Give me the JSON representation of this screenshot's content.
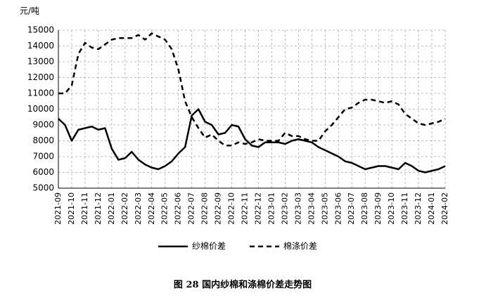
{
  "chart_data": {
    "type": "line",
    "y_unit_label": "元/吨",
    "caption": "图 28   国内纱棉和涤棉价差走势图",
    "categories": [
      "2021-09",
      null,
      "2021-10",
      null,
      "2021-11",
      null,
      "2021-12",
      null,
      "2022-01",
      null,
      "2022-02",
      null,
      "2022-03",
      null,
      "2022-04",
      null,
      "2022-05",
      null,
      "2022-06",
      null,
      "2022-07",
      null,
      "2022-08",
      null,
      "2022-09",
      null,
      "2022-10",
      null,
      "2022-11",
      null,
      "2022-12",
      null,
      "2023-01",
      null,
      "2023-02",
      null,
      "2023-03",
      null,
      "2023-04",
      null,
      "2023-05",
      null,
      "2023-06",
      null,
      "2023-07",
      null,
      "2023-08",
      null,
      "2023-09",
      null,
      "2023-10",
      null,
      "2023-11",
      null,
      "2023-12",
      null,
      "2024-01",
      null,
      "2024-02"
    ],
    "series": [
      {
        "name": "纱棉价差",
        "color": "#000000",
        "dash": false,
        "values": [
          9400,
          9000,
          8000,
          8700,
          8800,
          8900,
          8700,
          8800,
          7500,
          6800,
          6900,
          7300,
          6800,
          6500,
          6300,
          6200,
          6400,
          6700,
          7200,
          7600,
          9600,
          10000,
          9200,
          9000,
          8400,
          8500,
          9000,
          8900,
          8100,
          7700,
          7600,
          7900,
          7900,
          7900,
          7800,
          8000,
          8100,
          8000,
          7900,
          7600,
          7400,
          7200,
          7000,
          6700,
          6600,
          6400,
          6200,
          6300,
          6400,
          6400,
          6300,
          6200,
          6600,
          6400,
          6100,
          6000,
          6100,
          6200,
          6400
        ]
      },
      {
        "name": "棉涤价差",
        "color": "#000000",
        "dash": true,
        "values": [
          11000,
          11000,
          11500,
          13500,
          14200,
          13900,
          13800,
          14100,
          14400,
          14500,
          14500,
          14500,
          14700,
          14400,
          14800,
          14600,
          14400,
          13800,
          12500,
          10500,
          9500,
          8800,
          8200,
          8400,
          8000,
          7700,
          7700,
          7900,
          7800,
          7900,
          8100,
          8000,
          8000,
          8000,
          8500,
          8300,
          8300,
          8100,
          8000,
          8000,
          8600,
          9000,
          9500,
          10000,
          10100,
          10400,
          10600,
          10600,
          10500,
          10400,
          10500,
          10300,
          9700,
          9400,
          9100,
          9000,
          9100,
          9200,
          9400
        ]
      }
    ],
    "ylim": [
      5000,
      15000
    ],
    "yticks": [
      5000,
      6000,
      7000,
      8000,
      9000,
      10000,
      11000,
      12000,
      13000,
      14000,
      15000
    ],
    "grid": true
  }
}
